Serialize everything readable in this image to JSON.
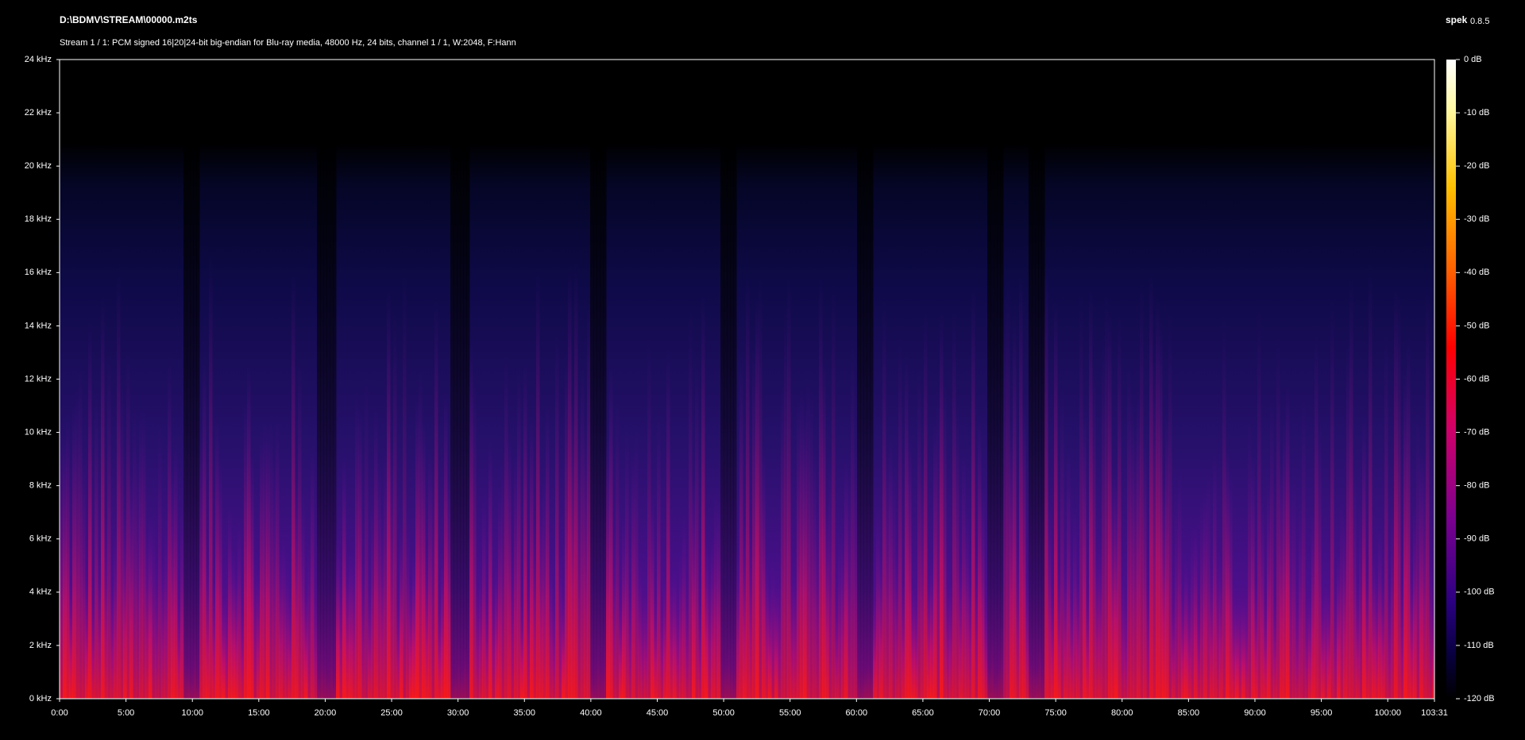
{
  "header": {
    "file": "D:\\BDMV\\STREAM\\00000.m2ts",
    "app": "spek",
    "version": "0.8.5",
    "stream_info": "Stream 1 / 1: PCM signed 16|20|24-bit big-endian for Blu-ray media, 48000 Hz, 24 bits, channel 1 / 1, W:2048, F:Hann"
  },
  "frequency_axis": {
    "labels": [
      "0 kHz",
      "2 kHz",
      "4 kHz",
      "6 kHz",
      "8 kHz",
      "10 kHz",
      "12 kHz",
      "14 kHz",
      "16 kHz",
      "18 kHz",
      "20 kHz",
      "22 kHz",
      "24 kHz"
    ]
  },
  "time_axis": {
    "labels": [
      "0:00",
      "5:00",
      "10:00",
      "15:00",
      "20:00",
      "25:00",
      "30:00",
      "35:00",
      "40:00",
      "45:00",
      "50:00",
      "55:00",
      "60:00",
      "65:00",
      "70:00",
      "75:00",
      "80:00",
      "85:00",
      "90:00",
      "95:00",
      "100:00",
      "103:31"
    ]
  },
  "level_scale": {
    "labels": [
      "0 dB",
      "-10 dB",
      "-20 dB",
      "-30 dB",
      "-40 dB",
      "-50 dB",
      "-60 dB",
      "-70 dB",
      "-80 dB",
      "-90 dB",
      "-100 dB",
      "-110 dB",
      "-120 dB"
    ]
  }
}
